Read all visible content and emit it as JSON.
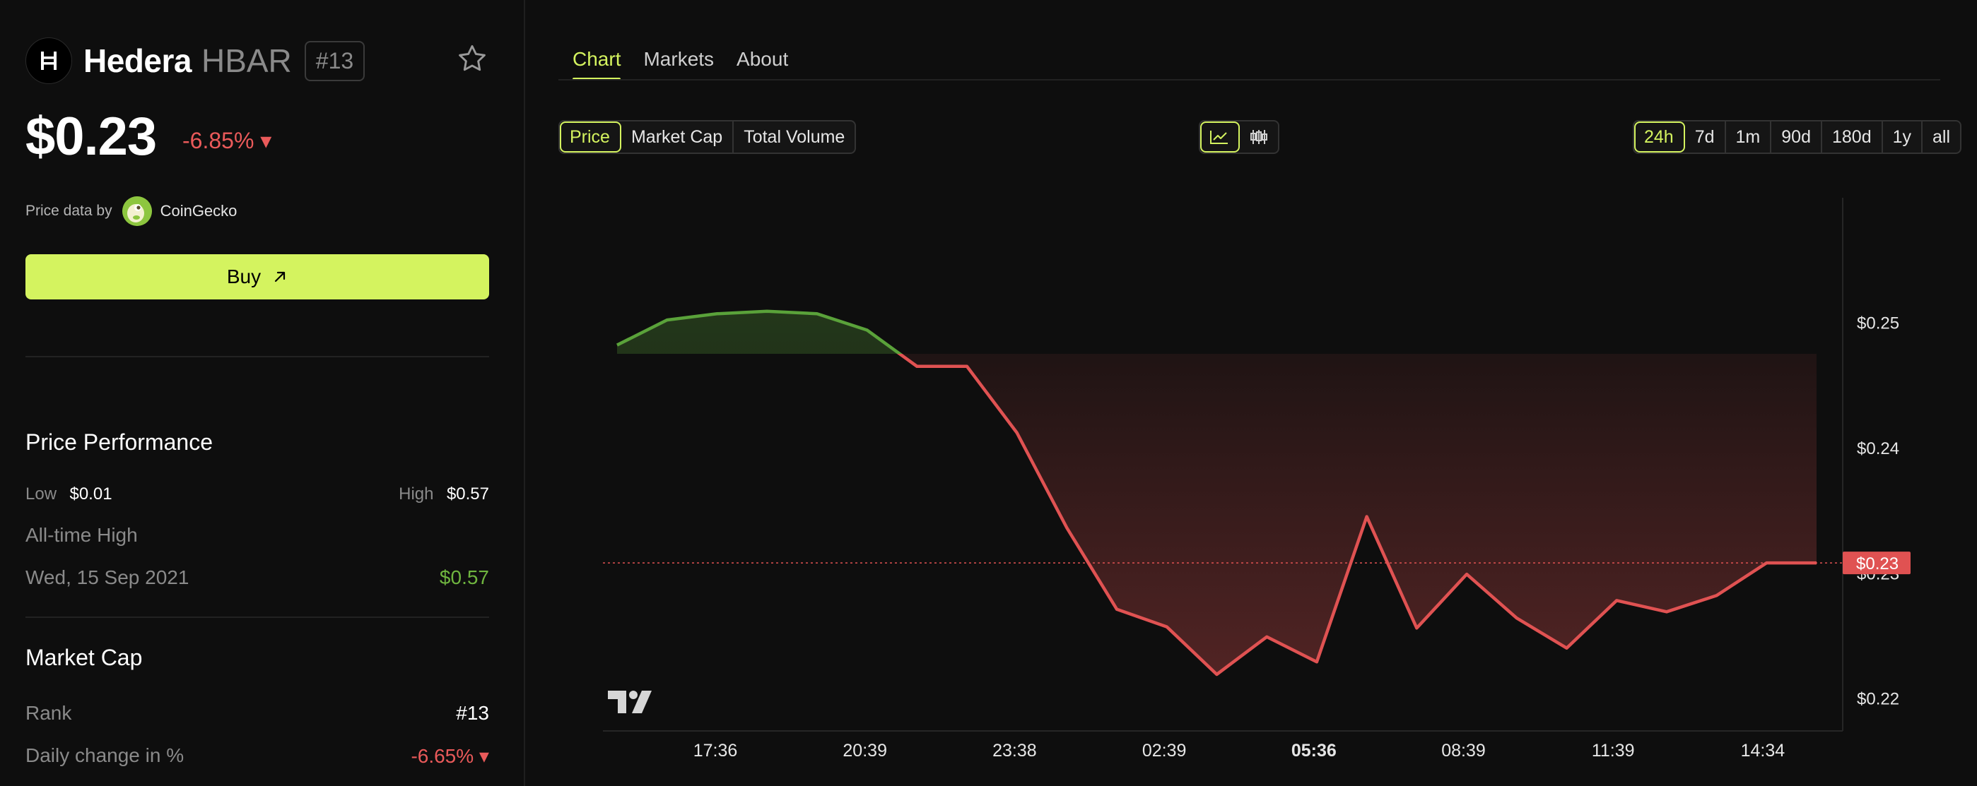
{
  "coin": {
    "name": "Hedera",
    "symbol": "HBAR",
    "rank": "#13",
    "price": "$0.23",
    "change": "-6.85% ▾",
    "price_data_label": "Price data by",
    "provider": "CoinGecko",
    "buy_label": "Buy"
  },
  "performance": {
    "title": "Price Performance",
    "low_label": "Low",
    "low_value": "$0.01",
    "high_label": "High",
    "high_value": "$0.57",
    "ath_label": "All-time High",
    "ath_date": "Wed, 15 Sep 2021",
    "ath_value": "$0.57"
  },
  "market_cap": {
    "title": "Market Cap",
    "rank_label": "Rank",
    "rank_value": "#13",
    "daily_label": "Daily change in %",
    "daily_value": "-6.65% ▾"
  },
  "tabs": [
    "Chart",
    "Markets",
    "About"
  ],
  "metric_buttons": [
    "Price",
    "Market Cap",
    "Total Volume"
  ],
  "range_buttons": [
    "24h",
    "7d",
    "1m",
    "90d",
    "180d",
    "1y",
    "all"
  ],
  "colors": {
    "accent": "#d4f35f",
    "up": "#5aa23a",
    "down": "#e05252",
    "change_negative": "#ea5a5a",
    "ath_positive": "#6fb53f"
  },
  "icons": {
    "coin_logo": "hedera-logo-icon",
    "favorite": "star-icon",
    "buy": "arrow-up-right-icon",
    "line_chart": "line-chart-icon",
    "candle_chart": "candlestick-icon",
    "watermark": "tradingview-logo"
  },
  "chart_data": {
    "type": "line",
    "x_ticks": [
      "17:36",
      "20:39",
      "23:38",
      "02:39",
      "05:36",
      "08:39",
      "11:39",
      "14:34"
    ],
    "y_ticks": [
      "$0.25",
      "$0.24",
      "$0.23",
      "$0.22"
    ],
    "ylim": [
      0.2175,
      0.2594
    ],
    "baseline": 0.2475,
    "current_label": "$0.23",
    "current_value": 0.2308,
    "values": [
      0.2482,
      0.2502,
      0.2507,
      0.2509,
      0.2507,
      0.2494,
      0.2465,
      0.2465,
      0.2412,
      0.2336,
      0.2271,
      0.2257,
      0.2219,
      0.2249,
      0.2229,
      0.2345,
      0.2256,
      0.2299,
      0.2264,
      0.224,
      0.2278,
      0.2269,
      0.2282,
      0.2308,
      0.2308
    ]
  }
}
